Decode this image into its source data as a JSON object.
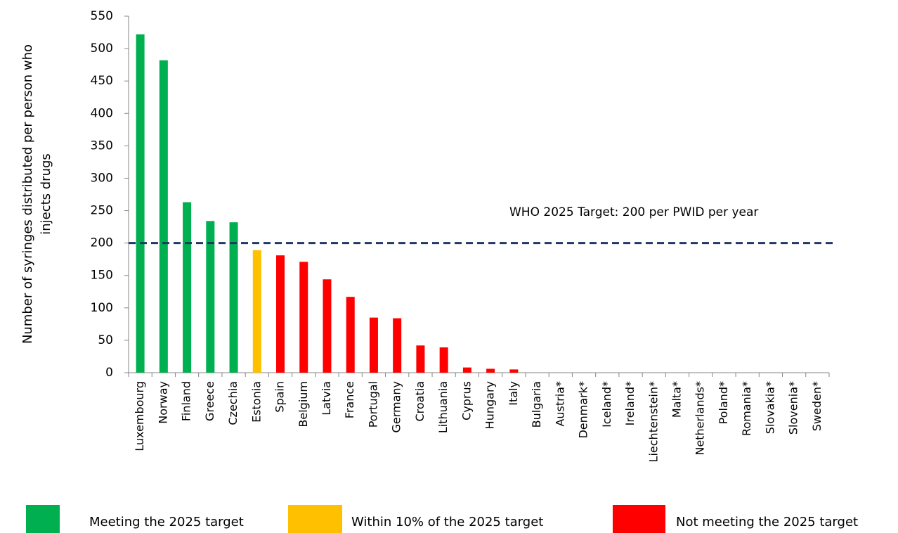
{
  "chart_data": {
    "type": "bar",
    "ylabel": [
      "Number of syringes distributed per person who",
      "injects drugs"
    ],
    "categories": [
      "Luxembourg",
      "Norway",
      "Finland",
      "Greece",
      "Czechia",
      "Estonia",
      "Spain",
      "Belgium",
      "Latvia",
      "France",
      "Portugal",
      "Germany",
      "Croatia",
      "Lithuania",
      "Cyprus",
      "Hungary",
      "Italy",
      "Bulgaria",
      "Austria*",
      "Denmark*",
      "Iceland*",
      "Ireland*",
      "Liechtenstein*",
      "Malta*",
      "Netherlands*",
      "Poland*",
      "Romania*",
      "Slovakia*",
      "Slovenia*",
      "Sweden*"
    ],
    "series": [
      {
        "name": "Meeting the 2025 target",
        "color": "#00b050",
        "values": [
          522,
          482,
          263,
          234,
          232,
          null,
          null,
          null,
          null,
          null,
          null,
          null,
          null,
          null,
          null,
          null,
          null,
          null,
          null,
          null,
          null,
          null,
          null,
          null,
          null,
          null,
          null,
          null,
          null,
          null
        ]
      },
      {
        "name": "Within 10% of the 2025 target",
        "color": "#ffc000",
        "values": [
          null,
          null,
          null,
          null,
          null,
          189,
          null,
          null,
          null,
          null,
          null,
          null,
          null,
          null,
          null,
          null,
          null,
          null,
          null,
          null,
          null,
          null,
          null,
          null,
          null,
          null,
          null,
          null,
          null,
          null
        ]
      },
      {
        "name": "Not meeting the 2025 target",
        "color": "#ff0000",
        "values": [
          null,
          null,
          null,
          null,
          null,
          null,
          181,
          171,
          144,
          117,
          85,
          84,
          42,
          39,
          8,
          6,
          5,
          0,
          null,
          null,
          null,
          null,
          null,
          null,
          null,
          null,
          null,
          null,
          null,
          null
        ]
      }
    ],
    "target": {
      "value": 200,
      "label": "WHO 2025 Target: 200 per PWID per year",
      "color": "#1f3864"
    },
    "ylim": [
      0,
      550
    ],
    "yticks": [
      0,
      50,
      100,
      150,
      200,
      250,
      300,
      350,
      400,
      450,
      500,
      550
    ],
    "grid": false,
    "legend": "bottom"
  }
}
